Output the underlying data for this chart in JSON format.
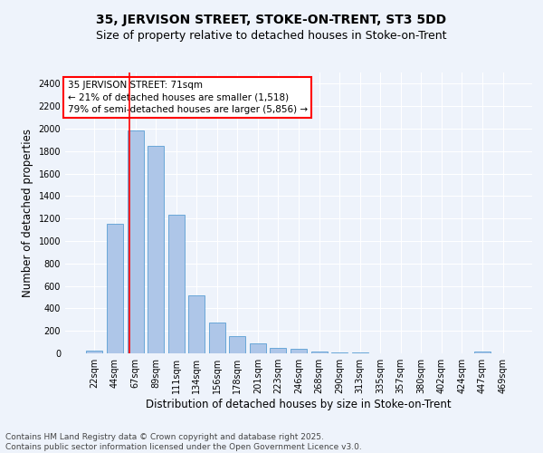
{
  "title1": "35, JERVISON STREET, STOKE-ON-TRENT, ST3 5DD",
  "title2": "Size of property relative to detached houses in Stoke-on-Trent",
  "xlabel": "Distribution of detached houses by size in Stoke-on-Trent",
  "ylabel": "Number of detached properties",
  "bar_labels": [
    "22sqm",
    "44sqm",
    "67sqm",
    "89sqm",
    "111sqm",
    "134sqm",
    "156sqm",
    "178sqm",
    "201sqm",
    "223sqm",
    "246sqm",
    "268sqm",
    "290sqm",
    "313sqm",
    "335sqm",
    "357sqm",
    "380sqm",
    "402sqm",
    "424sqm",
    "447sqm",
    "469sqm"
  ],
  "bar_values": [
    25,
    1150,
    1980,
    1850,
    1230,
    520,
    275,
    155,
    90,
    45,
    40,
    15,
    10,
    5,
    3,
    2,
    2,
    1,
    1,
    20,
    1
  ],
  "bar_color": "#aec6e8",
  "bar_edge_color": "#5a9fd4",
  "annotation_text": "35 JERVISON STREET: 71sqm\n← 21% of detached houses are smaller (1,518)\n79% of semi-detached houses are larger (5,856) →",
  "annotation_box_color": "white",
  "annotation_box_edge_color": "red",
  "vline_color": "red",
  "background_color": "#eef3fb",
  "grid_color": "white",
  "ylim": [
    0,
    2500
  ],
  "yticks": [
    0,
    200,
    400,
    600,
    800,
    1000,
    1200,
    1400,
    1600,
    1800,
    2000,
    2200,
    2400
  ],
  "footer_line1": "Contains HM Land Registry data © Crown copyright and database right 2025.",
  "footer_line2": "Contains public sector information licensed under the Open Government Licence v3.0.",
  "title1_fontsize": 10,
  "title2_fontsize": 9,
  "annotation_fontsize": 7.5,
  "axis_label_fontsize": 8.5,
  "tick_fontsize": 7,
  "footer_fontsize": 6.5
}
